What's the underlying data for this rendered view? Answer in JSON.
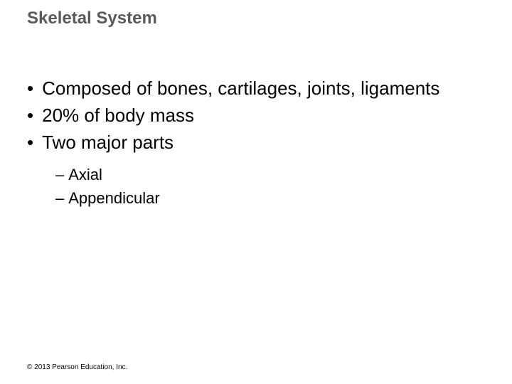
{
  "title": "Skeletal System",
  "bullets": {
    "item1": "Composed of bones, cartilages, joints, ligaments",
    "item2": "20% of body mass",
    "item3": "Two major parts"
  },
  "subBullets": {
    "item1": "Axial",
    "item2": "Appendicular"
  },
  "copyright": "© 2013 Pearson Education, Inc.",
  "colors": {
    "titleColor": "#5a5a5a",
    "textColor": "#000000",
    "background": "#ffffff"
  },
  "typography": {
    "titleFontSize": 24,
    "bulletFontSize": 26,
    "subBulletFontSize": 22,
    "copyrightFontSize": 10,
    "fontFamily": "Arial"
  }
}
